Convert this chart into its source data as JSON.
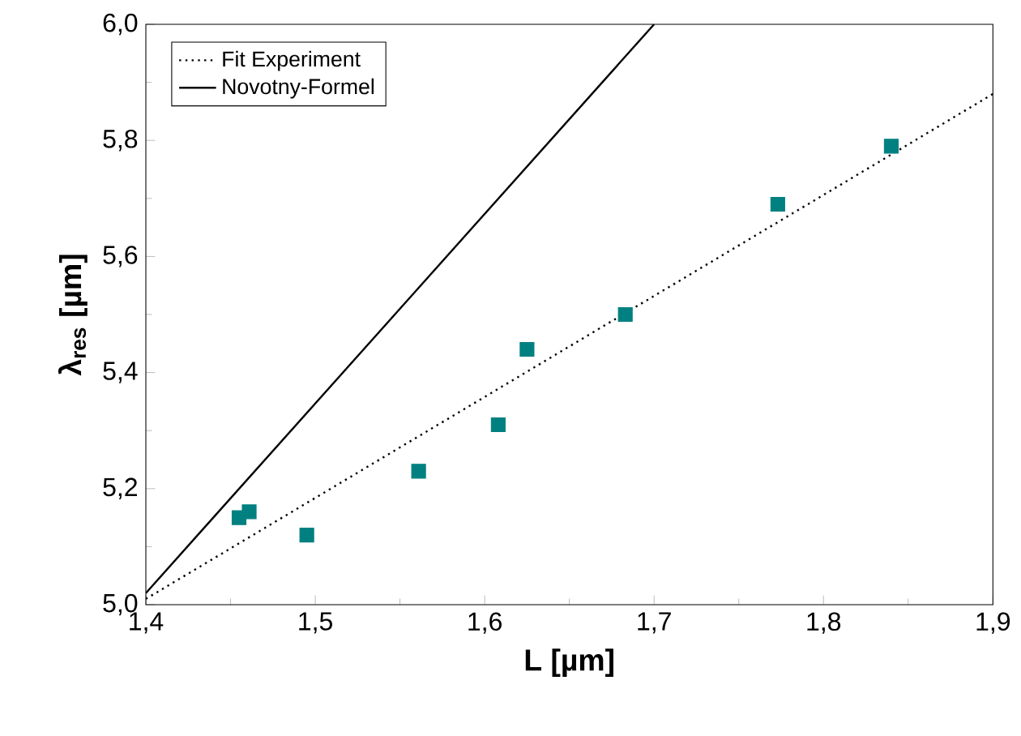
{
  "chart_data": {
    "type": "line",
    "xlabel": "L [µm]",
    "ylabel": "λ$_{res}$ [µm]",
    "xlim": [
      1.4,
      1.9
    ],
    "ylim": [
      5.0,
      6.0
    ],
    "xticks": [
      {
        "value": 1.4,
        "label": "1,4"
      },
      {
        "value": 1.5,
        "label": "1,5"
      },
      {
        "value": 1.6,
        "label": "1,6"
      },
      {
        "value": 1.7,
        "label": "1,7"
      },
      {
        "value": 1.8,
        "label": "1,8"
      },
      {
        "value": 1.9,
        "label": "1,9"
      }
    ],
    "yticks": [
      {
        "value": 5.0,
        "label": "5,0"
      },
      {
        "value": 5.2,
        "label": "5,2"
      },
      {
        "value": 5.4,
        "label": "5,4"
      },
      {
        "value": 5.6,
        "label": "5,6"
      },
      {
        "value": 5.8,
        "label": "5,8"
      },
      {
        "value": 6.0,
        "label": "6,0"
      }
    ],
    "legend": "top left",
    "grid": false,
    "series": [
      {
        "name": "Fit Experiment",
        "type": "line",
        "color": "#000000",
        "line_style": "dotted",
        "marker": "none",
        "x": [
          1.4,
          1.9
        ],
        "values": [
          5.01,
          5.88
        ]
      },
      {
        "name": "Novotny-Formel",
        "type": "line",
        "color": "#000000",
        "line_style": "solid",
        "marker": "none",
        "x": [
          1.4,
          1.7
        ],
        "values": [
          5.02,
          6.0
        ]
      },
      {
        "type": "scatter",
        "color": "#008080",
        "marker": "square",
        "x": [
          1.455,
          1.461,
          1.495,
          1.561,
          1.608,
          1.625,
          1.683,
          1.773,
          1.84
        ],
        "values": [
          5.15,
          5.16,
          5.12,
          5.23,
          5.31,
          5.44,
          5.5,
          5.69,
          5.79
        ]
      }
    ]
  }
}
